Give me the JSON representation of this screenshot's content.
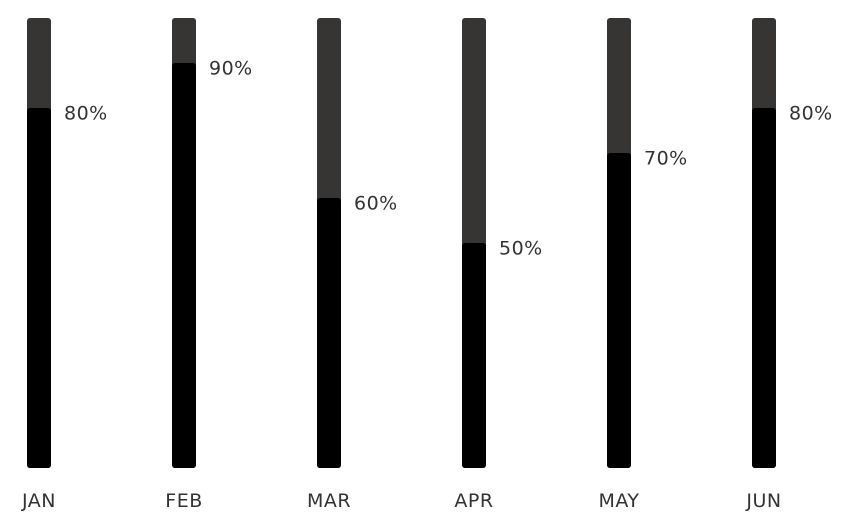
{
  "chart_data": {
    "type": "bar",
    "orientation": "vertical",
    "categories": [
      "JAN",
      "FEB",
      "MAR",
      "APR",
      "MAY",
      "JUN"
    ],
    "values": [
      80,
      90,
      60,
      50,
      70,
      80
    ],
    "value_labels": [
      "80%",
      "90%",
      "60%",
      "50%",
      "70%",
      "80%"
    ],
    "ylim": [
      0,
      100
    ],
    "grid": false,
    "legend": "none",
    "colors": {
      "fill": "#000000",
      "track": "#363534",
      "text": "#333333"
    }
  }
}
